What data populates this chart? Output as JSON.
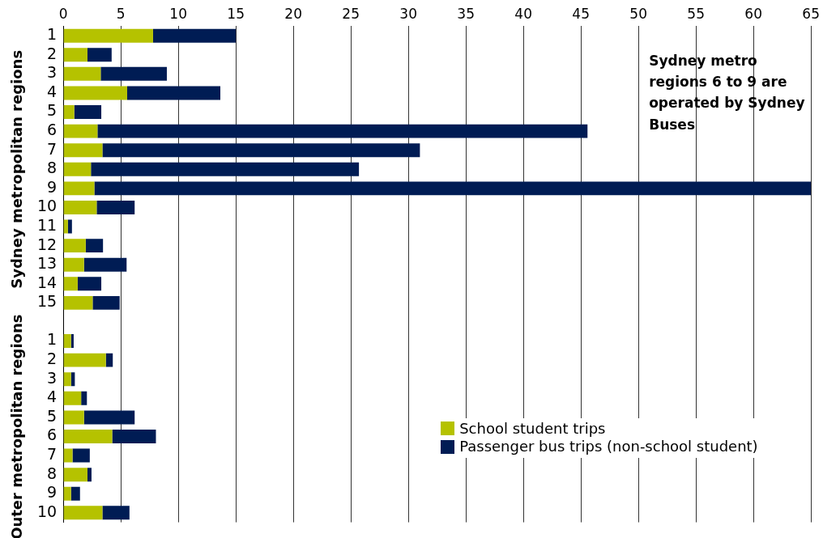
{
  "chart_data": {
    "type": "bar",
    "orientation": "horizontal",
    "stacked": true,
    "categories": [
      "1",
      "2",
      "3",
      "4",
      "5",
      "6",
      "7",
      "8",
      "9",
      "10",
      "11",
      "12",
      "13",
      "14",
      "15",
      null,
      "1",
      "2",
      "3",
      "4",
      "5",
      "6",
      "7",
      "8",
      "9",
      "10"
    ],
    "series": [
      {
        "name": "School student trips",
        "color": "#b5c200",
        "values": [
          7.8,
          2.1,
          3.25,
          5.55,
          0.95,
          2.97,
          3.4,
          2.4,
          2.7,
          2.9,
          0.4,
          1.95,
          1.8,
          1.25,
          2.55,
          null,
          0.67,
          3.7,
          0.67,
          1.55,
          1.8,
          4.25,
          0.8,
          2.1,
          0.67,
          3.4
        ]
      },
      {
        "name": "Passenger bus trips (non-school student)",
        "color": "#001c54",
        "values": [
          7.2,
          2.1,
          5.75,
          8.1,
          2.35,
          42.6,
          27.6,
          23.3,
          62.3,
          3.3,
          0.35,
          1.5,
          3.7,
          2.05,
          2.35,
          null,
          0.23,
          0.6,
          0.33,
          0.5,
          4.4,
          3.8,
          1.5,
          0.35,
          0.78,
          2.35
        ]
      }
    ],
    "xlim": [
      0,
      65
    ],
    "xticks": [
      0,
      5,
      10,
      15,
      20,
      25,
      30,
      35,
      40,
      45,
      50,
      55,
      60,
      65
    ],
    "grid": "x",
    "legend": "bottom right",
    "annotations": [
      "Sydney metro regions 6 to 9 are operated by Sydney Buses",
      "Sydney metropolitan regions",
      "Outer metropolitan regions"
    ]
  }
}
